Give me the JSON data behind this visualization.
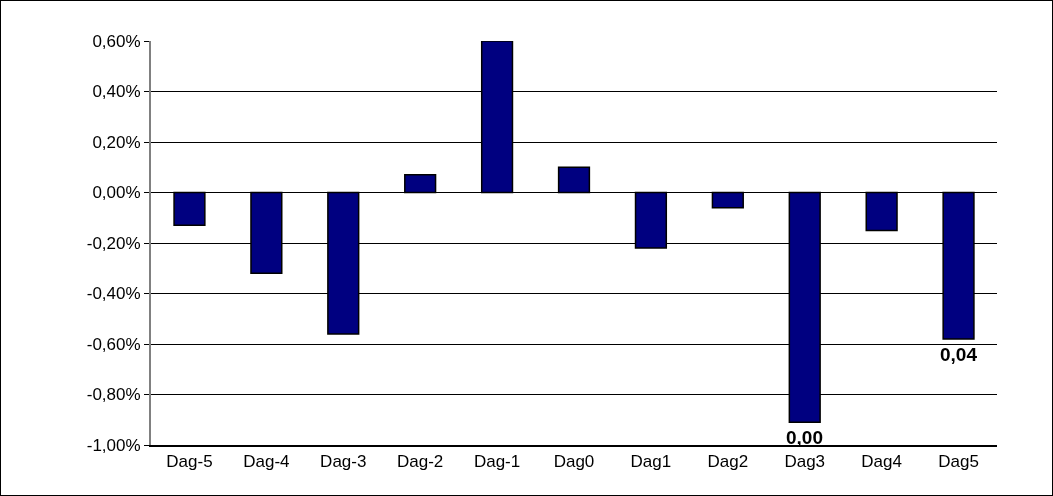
{
  "chart_data": {
    "type": "bar",
    "categories": [
      "Dag-5",
      "Dag-4",
      "Dag-3",
      "Dag-2",
      "Dag-1",
      "Dag0",
      "Dag1",
      "Dag2",
      "Dag3",
      "Dag4",
      "Dag5"
    ],
    "values": [
      -0.13,
      -0.32,
      -0.56,
      0.07,
      0.6,
      0.1,
      -0.22,
      -0.06,
      -0.91,
      -0.15,
      -0.58
    ],
    "color": "#000080",
    "ylim": [
      -1,
      0.6
    ],
    "yticks": [
      {
        "value": -1,
        "label": "-1,00%"
      },
      {
        "value": -0.8,
        "label": "-0,80%"
      },
      {
        "value": -0.6,
        "label": "-0,60%"
      },
      {
        "value": -0.4,
        "label": "-0,40%"
      },
      {
        "value": -0.2,
        "label": "-0,20%"
      },
      {
        "value": 0,
        "label": "0,00%"
      },
      {
        "value": 0.2,
        "label": "0,20%"
      },
      {
        "value": 0.4,
        "label": "0,40%"
      },
      {
        "value": 0.6,
        "label": "0,60%"
      }
    ],
    "grid": "y",
    "annotations": [
      {
        "text": "0,00",
        "x": "Dag3",
        "y": -0.91
      },
      {
        "text": "0,04",
        "x": "Dag5",
        "y": -0.58
      }
    ]
  }
}
